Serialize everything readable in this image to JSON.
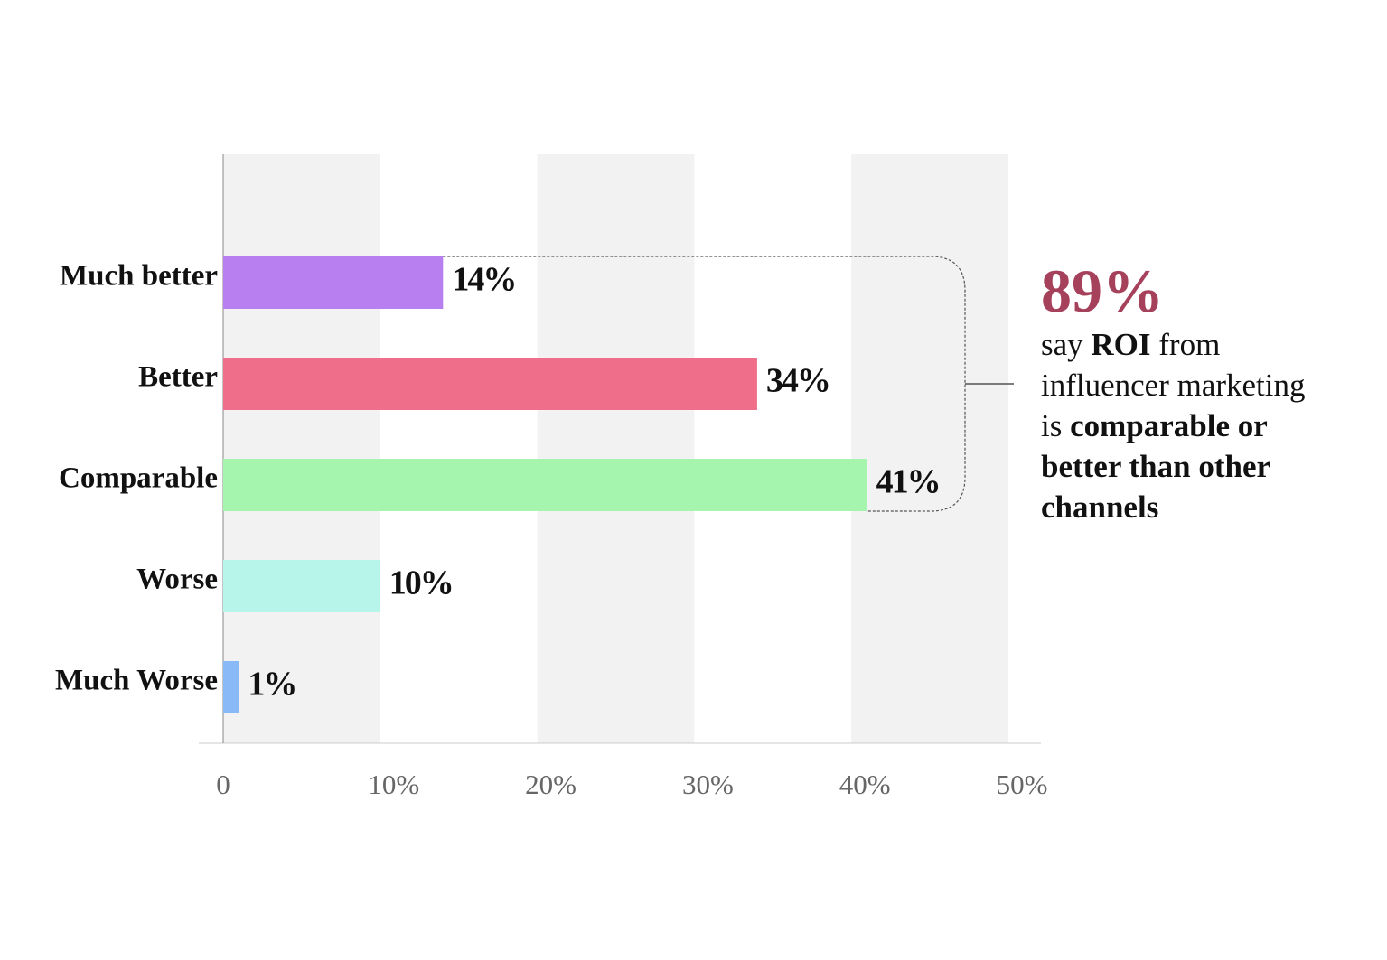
{
  "chart_data": {
    "type": "hbar",
    "categories": [
      "Much better",
      "Better",
      "Comparable",
      "Worse",
      "Much Worse"
    ],
    "values": [
      14,
      34,
      41,
      10,
      1
    ],
    "value_labels": [
      "14%",
      "34%",
      "41%",
      "10%",
      "1%"
    ],
    "colors": [
      "#b77ff0",
      "#ef6f8b",
      "#a5f5ae",
      "#b7f5eb",
      "#8ab9f7"
    ],
    "xlim": [
      0,
      50
    ],
    "xticks": [
      0,
      {
        "value": 10,
        "label": "10%"
      },
      {
        "value": 20,
        "label": "20%"
      },
      {
        "value": 30,
        "label": "30%"
      },
      {
        "value": 40,
        "label": "40%"
      },
      {
        "value": 50,
        "label": "50%"
      }
    ],
    "grid": "bands",
    "annotation": {
      "headline": "89%",
      "lines": [
        [
          {
            "text": "say "
          },
          {
            "text": "ROI",
            "bold": true
          },
          {
            "text": " from"
          }
        ],
        [
          {
            "text": "influencer marketing"
          }
        ],
        [
          {
            "text": "is "
          },
          {
            "text": "comparable or",
            "bold": true
          }
        ],
        [
          {
            "text": "better than other",
            "bold": true
          }
        ],
        [
          {
            "text": "channels",
            "bold": true
          }
        ]
      ]
    }
  }
}
